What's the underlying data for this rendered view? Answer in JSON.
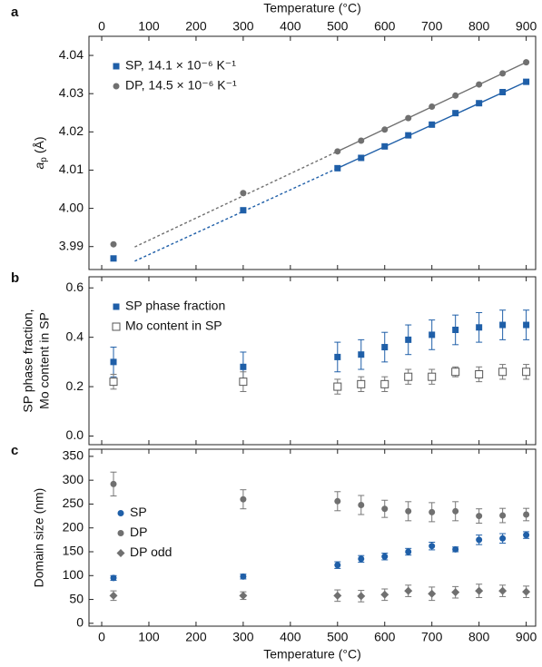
{
  "chart_data": [
    {
      "type": "scatter",
      "panel_label": "a",
      "x_label": "Temperature (°C)",
      "x_axis_position": "top",
      "y_label": {
        "symbol": "a",
        "subscript": "p",
        "unit": "(Å)"
      },
      "xlim": [
        -27,
        920
      ],
      "xticks": [
        0,
        100,
        200,
        300,
        400,
        500,
        600,
        700,
        800,
        900
      ],
      "ylim": [
        3.984,
        4.045
      ],
      "yticks": [
        {
          "value": 3.99,
          "label": "3.99"
        },
        {
          "value": 4,
          "label": "4.00"
        },
        4.01,
        4.02,
        4.03,
        4.04
      ],
      "legend": "upper left",
      "x": [
        25,
        300,
        500,
        550,
        600,
        650,
        700,
        750,
        800,
        850,
        900
      ],
      "series": [
        {
          "name": "SP, 14.1 × 10⁻⁶ K⁻¹",
          "color": "#1f5fa8",
          "marker": "square",
          "values": [
            3.9869,
            3.9995,
            4.0105,
            4.0132,
            4.0162,
            4.0191,
            4.0219,
            4.0249,
            4.0275,
            4.0304,
            4.0331
          ],
          "fits": [
            {
              "style": "dotted",
              "x": [
                70,
                500
              ],
              "values": [
                3.9862,
                4.0105
              ]
            },
            {
              "style": "solid",
              "x": [
                500,
                900
              ],
              "values": [
                4.0105,
                4.0331
              ]
            }
          ]
        },
        {
          "name": "DP, 14.5 × 10⁻⁶ K⁻¹",
          "color": "#707070",
          "marker": "circle",
          "values": [
            3.9906,
            4.004,
            4.0149,
            4.0177,
            4.0206,
            4.0236,
            4.0266,
            4.0295,
            4.0324,
            4.0353,
            4.0382
          ],
          "fits": [
            {
              "style": "dotted",
              "x": [
                70,
                500
              ],
              "values": [
                3.9899,
                4.0149
              ]
            },
            {
              "style": "solid",
              "x": [
                500,
                900
              ],
              "values": [
                4.0149,
                4.0382
              ]
            }
          ]
        }
      ]
    },
    {
      "type": "scatter",
      "panel_label": "b",
      "y_label": [
        "SP phase fraction,",
        "Mo content in SP"
      ],
      "xlim": [
        -27,
        920
      ],
      "xticks": [
        0,
        100,
        200,
        300,
        400,
        500,
        600,
        700,
        800,
        900
      ],
      "ylim": [
        -0.035,
        0.645
      ],
      "yticks": [
        {
          "value": 0,
          "label": "0.0"
        },
        0.2,
        0.4,
        0.6
      ],
      "legend": "upper left",
      "x": [
        25,
        300,
        500,
        550,
        600,
        650,
        700,
        750,
        800,
        850,
        900
      ],
      "series": [
        {
          "name": "SP phase fraction",
          "color": "#1f5fa8",
          "marker": "square",
          "values": [
            0.3,
            0.28,
            0.32,
            0.33,
            0.36,
            0.39,
            0.41,
            0.43,
            0.44,
            0.45,
            0.45
          ],
          "errors": [
            0.06,
            0.06,
            0.06,
            0.06,
            0.06,
            0.06,
            0.06,
            0.06,
            0.06,
            0.06,
            0.06
          ]
        },
        {
          "name": "Mo content in SP",
          "color": "#555555",
          "marker": "open-square",
          "values": [
            0.22,
            0.22,
            0.2,
            0.21,
            0.21,
            0.24,
            0.24,
            0.26,
            0.25,
            0.26,
            0.26
          ],
          "errors": [
            0.03,
            0.04,
            0.03,
            0.03,
            0.03,
            0.03,
            0.03,
            0.02,
            0.03,
            0.03,
            0.03
          ]
        }
      ]
    },
    {
      "type": "scatter",
      "panel_label": "c",
      "x_label": "Temperature (°C)",
      "x_axis_position": "bottom",
      "y_label": "Domain size (nm)",
      "xlim": [
        -27,
        920
      ],
      "xticks": [
        0,
        100,
        200,
        300,
        400,
        500,
        600,
        700,
        800,
        900
      ],
      "ylim": [
        -6,
        365
      ],
      "yticks": [
        0,
        50,
        100,
        150,
        200,
        250,
        300,
        350
      ],
      "legend": "center left",
      "x": [
        25,
        300,
        500,
        550,
        600,
        650,
        700,
        750,
        800,
        850,
        900
      ],
      "series": [
        {
          "name": "SP",
          "color": "#1f5fa8",
          "marker": "circle",
          "values": [
            95,
            98,
            122,
            135,
            140,
            150,
            162,
            155,
            175,
            178,
            185
          ],
          "errors": [
            5,
            5,
            7,
            7,
            7,
            7,
            8,
            5,
            10,
            10,
            7
          ]
        },
        {
          "name": "DP",
          "color": "#707070",
          "marker": "circle",
          "values": [
            292,
            260,
            256,
            248,
            240,
            235,
            233,
            235,
            225,
            226,
            228
          ],
          "errors": [
            25,
            20,
            20,
            20,
            18,
            20,
            20,
            20,
            15,
            15,
            13
          ]
        },
        {
          "name": "DP odd",
          "color": "#707070",
          "marker": "diamond",
          "values": [
            58,
            58,
            58,
            57,
            60,
            68,
            62,
            65,
            68,
            68,
            66
          ],
          "errors": [
            10,
            8,
            12,
            12,
            12,
            12,
            14,
            12,
            14,
            12,
            12
          ]
        }
      ]
    }
  ]
}
